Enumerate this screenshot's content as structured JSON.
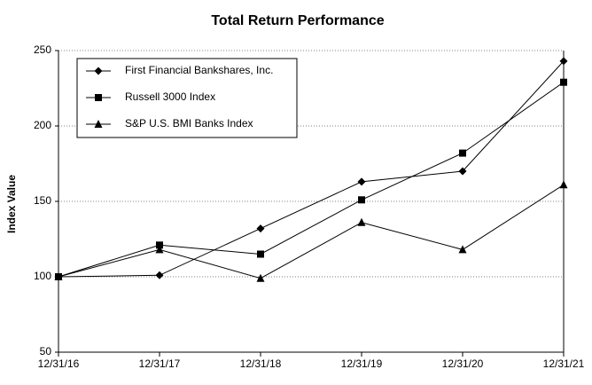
{
  "chart_data": {
    "type": "line",
    "title": "Total Return Performance",
    "y_label": "Index Value",
    "categories": [
      "12/31/16",
      "12/31/17",
      "12/31/18",
      "12/31/19",
      "12/31/20",
      "12/31/21"
    ],
    "series": [
      {
        "name": "First Financial Bankshares, Inc.",
        "color": "#000000",
        "marker": "diamond",
        "values": [
          100,
          101,
          132,
          163,
          170,
          243
        ]
      },
      {
        "name": "Russell 3000 Index",
        "color": "#000000",
        "marker": "square",
        "values": [
          100,
          121,
          115,
          151,
          182,
          229
        ]
      },
      {
        "name": "S&P U.S. BMI Banks Index",
        "color": "#000000",
        "marker": "triangle",
        "values": [
          100,
          118,
          99,
          136,
          118,
          161
        ]
      }
    ],
    "ylim": [
      50,
      250
    ],
    "yticks": [
      50,
      100,
      150,
      200,
      250
    ],
    "grid": true,
    "legend": "top-left"
  }
}
